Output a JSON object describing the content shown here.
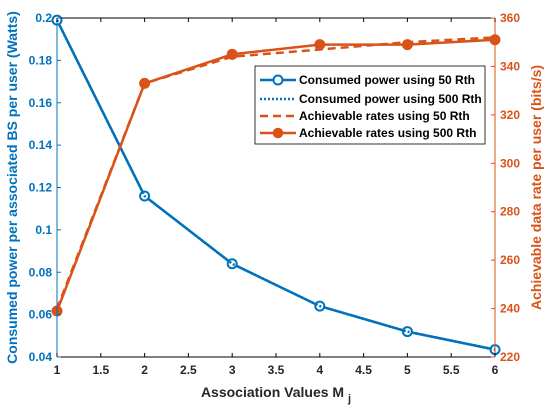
{
  "chart_data": {
    "type": "line",
    "x": [
      1,
      2,
      3,
      4,
      5,
      6
    ],
    "xlabel": "Association Values M",
    "xlabel_sub": "j",
    "xlim": [
      1,
      6
    ],
    "xticks": [
      "1",
      "1.5",
      "2",
      "2.5",
      "3",
      "3.5",
      "4",
      "4.5",
      "5",
      "5.5",
      "6"
    ],
    "y_left": {
      "label": "Consumed power per associated BS per user (Watts)",
      "lim": [
        0.04,
        0.2
      ],
      "ticks": [
        "0.04",
        "0.06",
        "0.08",
        "0.1",
        "0.12",
        "0.14",
        "0.16",
        "0.18",
        "0.2"
      ],
      "color": "#0072BD"
    },
    "y_right": {
      "label": "Achievable data rate per user (bits/s)",
      "lim": [
        220,
        360
      ],
      "ticks": [
        "220",
        "240",
        "260",
        "280",
        "300",
        "320",
        "340",
        "360"
      ],
      "color": "#D95319"
    },
    "series": [
      {
        "name": "Consumed power using 50 Rth",
        "axis": "left",
        "style": "solid",
        "marker": "circle-open",
        "color": "#0072BD",
        "values": [
          0.199,
          0.116,
          0.084,
          0.064,
          0.052,
          0.0435
        ]
      },
      {
        "name": "Consumed power using 500 Rth",
        "axis": "left",
        "style": "dotted",
        "marker": "none",
        "color": "#0072BD",
        "values": [
          0.199,
          0.116,
          0.084,
          0.064,
          0.052,
          0.0435
        ]
      },
      {
        "name": "Achievable rates using 50 Rth",
        "axis": "right",
        "style": "dashed",
        "marker": "none",
        "color": "#D95319",
        "values": [
          240,
          333,
          344,
          347,
          350,
          352
        ]
      },
      {
        "name": "Achievable rates using 500 Rth",
        "axis": "right",
        "style": "solid",
        "marker": "circle-filled",
        "color": "#D95319",
        "values": [
          239,
          333,
          345,
          349,
          349,
          351
        ]
      }
    ],
    "grid": false,
    "legend_position": "top-right"
  }
}
